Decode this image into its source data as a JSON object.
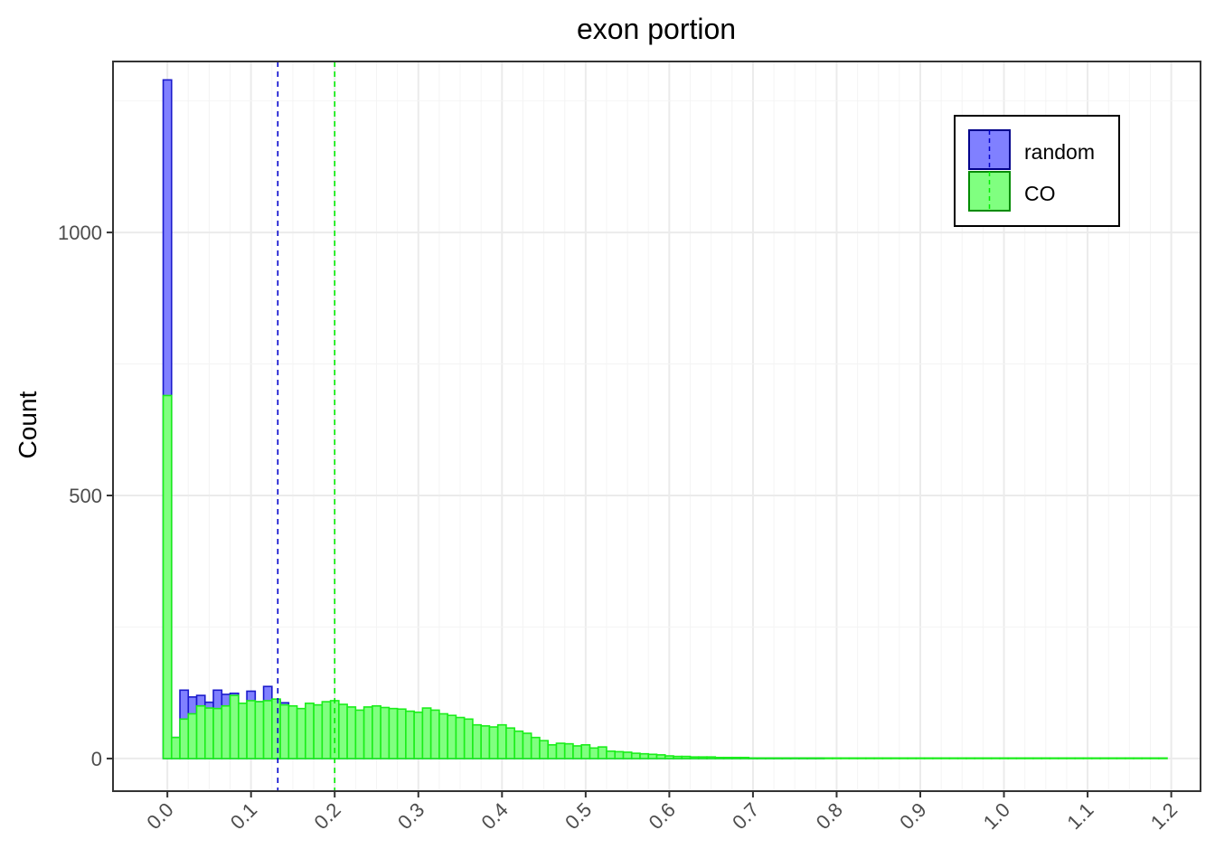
{
  "chart_data": {
    "type": "bar",
    "title": "exon portion",
    "xlabel": "",
    "ylabel": "Count",
    "xlim": [
      -0.065,
      1.235
    ],
    "ylim": [
      -62,
      1325
    ],
    "x_ticks": [
      "0.0",
      "0.1",
      "0.2",
      "0.3",
      "0.4",
      "0.5",
      "0.6",
      "0.7",
      "0.8",
      "0.9",
      "1.0",
      "1.1",
      "1.2"
    ],
    "y_ticks": [
      "0",
      "500",
      "1000"
    ],
    "bin_width": 0.01,
    "bin_start": -0.005,
    "grid": true,
    "legend_position": "top-right",
    "series": [
      {
        "name": "random",
        "fill": "#8080ff",
        "stroke": "#1a1acc",
        "mean_line": 0.132,
        "values": [
          1290,
          40,
          130,
          117,
          120,
          107,
          130,
          122,
          124,
          103,
          128,
          108,
          137,
          110,
          106,
          95,
          88,
          93,
          97,
          91,
          88,
          82,
          76,
          74,
          71,
          70,
          66,
          63,
          60,
          58,
          56,
          53,
          50,
          46,
          42,
          40,
          38,
          34,
          33,
          30,
          28,
          26,
          22,
          19,
          16,
          13,
          11,
          9,
          8,
          6,
          6,
          5,
          4,
          4,
          3,
          3,
          2,
          2,
          1,
          1,
          1,
          1,
          1,
          1,
          1,
          1,
          1,
          1,
          1,
          1,
          1,
          1,
          1,
          1,
          1,
          1,
          1,
          1,
          1,
          0,
          0,
          0,
          0,
          0,
          0,
          0,
          0,
          0,
          0,
          0,
          0,
          0,
          0,
          0,
          0,
          0,
          0,
          0,
          0,
          0,
          0,
          0,
          0,
          0,
          0,
          0,
          0,
          0,
          0,
          0,
          0,
          0,
          0,
          0,
          0,
          0,
          0,
          0,
          0,
          0
        ]
      },
      {
        "name": "CO",
        "fill": "#80ff80",
        "stroke": "#1aee1a",
        "mean_line": 0.2,
        "values": [
          690,
          40,
          75,
          85,
          100,
          96,
          95,
          100,
          120,
          105,
          110,
          108,
          110,
          113,
          102,
          100,
          95,
          105,
          102,
          108,
          110,
          103,
          98,
          92,
          98,
          100,
          97,
          95,
          94,
          90,
          88,
          96,
          92,
          85,
          82,
          78,
          75,
          64,
          62,
          60,
          64,
          58,
          52,
          48,
          40,
          34,
          26,
          29,
          28,
          24,
          26,
          20,
          22,
          14,
          13,
          12,
          10,
          9,
          8,
          7,
          5,
          4,
          4,
          3,
          3,
          3,
          2,
          2,
          2,
          2,
          1,
          1,
          1,
          1,
          1,
          1,
          1,
          1,
          1,
          1,
          1,
          1,
          1,
          1,
          1,
          1,
          1,
          1,
          1,
          1,
          1,
          1,
          1,
          1,
          1,
          1,
          1,
          1,
          1,
          1,
          1,
          1,
          1,
          1,
          1,
          1,
          1,
          1,
          1,
          1,
          1,
          1,
          1,
          1,
          1,
          1,
          1,
          1,
          1,
          1
        ]
      }
    ]
  }
}
